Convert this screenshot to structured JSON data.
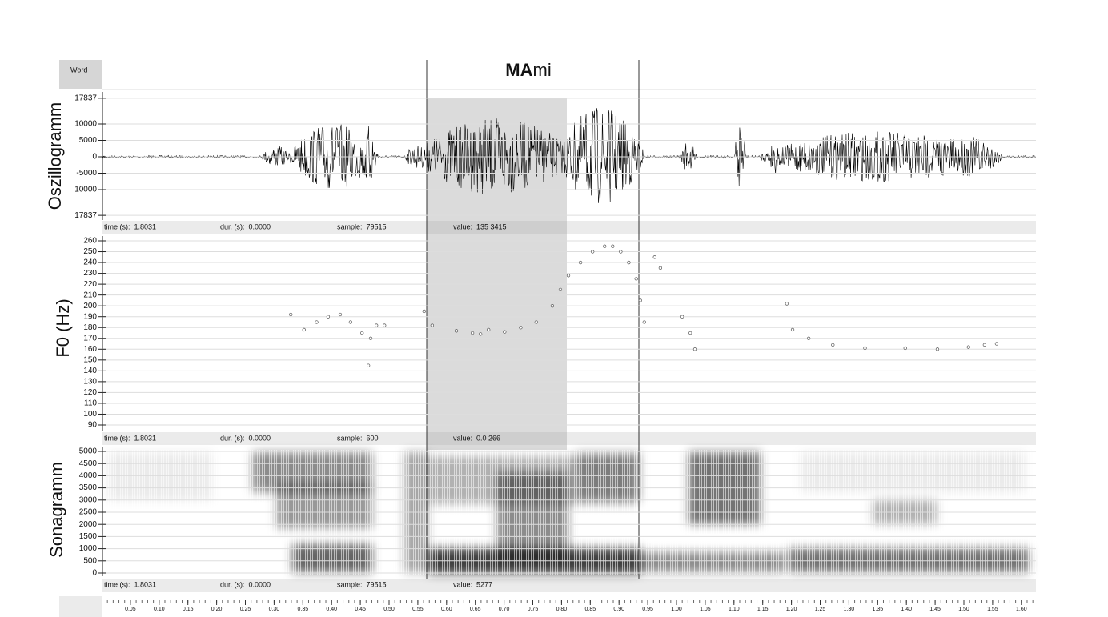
{
  "word_tier": {
    "label": "Word",
    "segment_bold": "MA",
    "segment_rest": "mi"
  },
  "oscillogram": {
    "label": "Oszillogramm",
    "yticks": [
      17837,
      10000,
      5000,
      0,
      -5000,
      {
        "value": -10000,
        "label": "10000"
      },
      {
        "value": -17837,
        "label": "17837"
      }
    ],
    "info": [
      "time (s):  1.8031",
      "dur. (s):  0.0000",
      "sample:  79515",
      "value:  135 3415"
    ]
  },
  "f0": {
    "label": "F0 (Hz)",
    "yticks": [
      260,
      250,
      240,
      230,
      220,
      210,
      200,
      190,
      180,
      170,
      160,
      150,
      140,
      130,
      120,
      110,
      100,
      90
    ],
    "t": [
      0.329,
      0.352,
      0.374,
      0.394,
      0.415,
      0.433,
      0.453,
      0.464,
      0.468,
      0.478,
      0.492,
      0.561,
      0.575,
      0.617,
      0.645,
      0.659,
      0.673,
      0.701,
      0.729,
      0.756,
      0.784,
      0.798,
      0.812,
      0.833,
      0.854,
      0.875,
      0.889,
      0.903,
      0.917,
      0.93,
      0.937,
      0.944,
      0.962,
      0.972,
      1.01,
      1.024,
      1.032,
      1.192,
      1.202,
      1.23,
      1.272,
      1.328,
      1.398,
      1.454,
      1.508,
      1.536,
      1.557
    ],
    "hz": [
      192,
      178,
      185,
      190,
      192,
      185,
      175,
      145,
      170,
      182,
      182,
      195,
      182,
      177,
      175,
      174,
      178,
      176,
      180,
      185,
      200,
      215,
      228,
      240,
      250,
      255,
      255,
      250,
      240,
      225,
      205,
      185,
      245,
      235,
      190,
      175,
      160,
      202,
      178,
      170,
      164,
      161,
      161,
      160,
      162,
      164,
      165
    ],
    "info": [
      "time (s):  1.8031",
      "dur. (s):  0.0000",
      "sample:  600",
      "value:  0.0 266"
    ]
  },
  "sonagram": {
    "label": "Sonagramm",
    "yticks": [
      5000,
      4500,
      4000,
      3500,
      3000,
      2500,
      2000,
      1500,
      1000,
      500,
      0
    ],
    "info": [
      "time (s):  1.8031",
      "dur. (s):  0.0000",
      "sample:  79515",
      "value:  5277"
    ]
  },
  "time_axis": {
    "ticks": [
      0.05,
      {
        "value": 0.1,
        "label": "0.10"
      },
      0.15,
      {
        "value": 0.2,
        "label": "0.20"
      },
      0.25,
      {
        "value": 0.3,
        "label": "0.30"
      },
      0.35,
      {
        "value": 0.4,
        "label": "0.40"
      },
      0.45,
      {
        "value": 0.5,
        "label": "0.50"
      },
      0.55,
      {
        "value": 0.6,
        "label": "0.60"
      },
      0.65,
      {
        "value": 0.7,
        "label": "0.70"
      },
      0.75,
      {
        "value": 0.8,
        "label": "0.80"
      },
      0.85,
      {
        "value": 0.9,
        "label": "0.90"
      },
      0.95,
      {
        "value": 1,
        "label": "1.00"
      },
      1.05,
      {
        "value": 1.1,
        "label": "1.10"
      },
      1.15,
      {
        "value": 1.2,
        "label": "1.20"
      },
      1.25,
      {
        "value": 1.3,
        "label": "1.30"
      },
      1.35,
      {
        "value": 1.4,
        "label": "1.40"
      },
      1.45,
      {
        "value": 1.5,
        "label": "1.50"
      },
      1.55,
      {
        "value": 1.6,
        "label": "1.60"
      }
    ]
  }
}
